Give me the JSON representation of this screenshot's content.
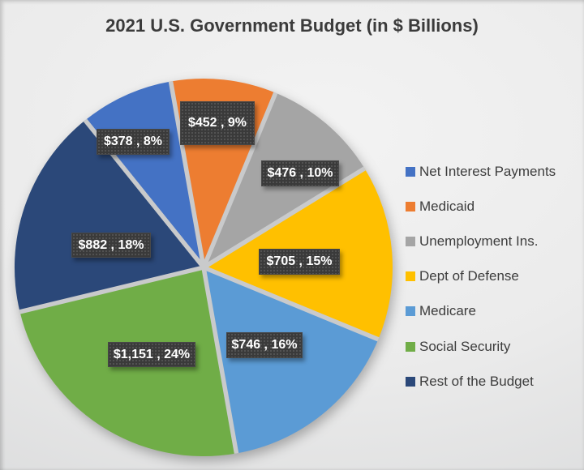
{
  "chart_data": {
    "type": "pie",
    "title": "2021 U.S. Government Budget (in $ Billions)",
    "legend_position": "right",
    "direction": "clockwise",
    "start_angle_deg": -38.8,
    "gap_color": "#C9CACB",
    "label_box_color": "#3A3A3A",
    "label_text_color": "#FFFFFF",
    "title_color": "#3B3B3B",
    "legend_text_color": "#3D3D3D",
    "slices": [
      {
        "label": "Net Interest Payments",
        "value": 378,
        "percent": 8,
        "color": "#4472C4",
        "data_label": "$378 , 8%"
      },
      {
        "label": "Medicaid",
        "value": 452,
        "percent": 9,
        "color": "#ED7D31",
        "data_label": "$452 , 9%"
      },
      {
        "label": "Unemployment Ins.",
        "value": 476,
        "percent": 10,
        "color": "#A5A5A5",
        "data_label": "$476 , 10%"
      },
      {
        "label": "Dept of Defense",
        "value": 705,
        "percent": 15,
        "color": "#FFC000",
        "data_label": "$705 , 15%"
      },
      {
        "label": "Medicare",
        "value": 746,
        "percent": 16,
        "color": "#5B9BD5",
        "data_label": "$746 , 16%"
      },
      {
        "label": "Social Security",
        "value": 1151,
        "percent": 24,
        "color": "#70AD47",
        "data_label": "$1,151 , 24%"
      },
      {
        "label": "Rest of the Budget",
        "value": 882,
        "percent": 18,
        "color": "#2B4879",
        "data_label": "$882 , 18%"
      }
    ]
  }
}
